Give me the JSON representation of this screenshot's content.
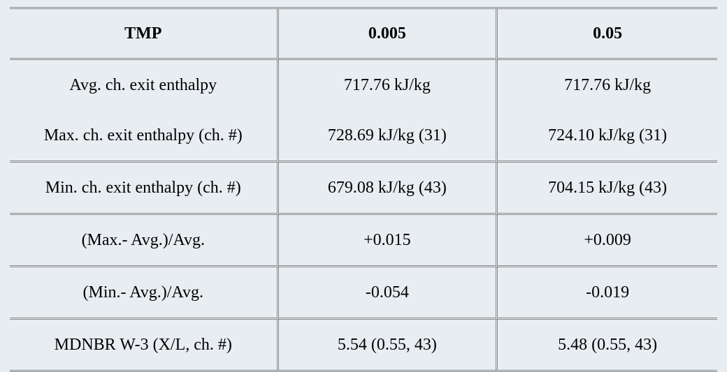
{
  "table": {
    "type": "table",
    "background_color": "#e8edf2",
    "border_color": "#888888",
    "font_family": "Garamond, Times New Roman, serif",
    "font_size_pt": 18,
    "header_font_weight": "bold",
    "columns": [
      {
        "label": "TMP",
        "width_pct": 38,
        "align": "center"
      },
      {
        "label": "0.005",
        "width_pct": 31,
        "align": "center"
      },
      {
        "label": "0.05",
        "width_pct": 31,
        "align": "center"
      }
    ],
    "rows": [
      {
        "label": "Avg. ch. exit enthalpy",
        "col1": "717.76 kJ/kg",
        "col2": "717.76 kJ/kg",
        "hr_below": false
      },
      {
        "label": "Max. ch. exit enthalpy (ch. #)",
        "col1": "728.69 kJ/kg (31)",
        "col2": "724.10 kJ/kg (31)",
        "hr_below": true
      },
      {
        "label": "Min. ch. exit enthalpy (ch. #)",
        "col1": "679.08 kJ/kg (43)",
        "col2": "704.15 kJ/kg (43)",
        "hr_below": true
      },
      {
        "label": "(Max.- Avg.)/Avg.",
        "col1": "+0.015",
        "col2": "+0.009",
        "hr_below": true
      },
      {
        "label": "(Min.- Avg.)/Avg.",
        "col1": "-0.054",
        "col2": "-0.019",
        "hr_below": true
      },
      {
        "label": "MDNBR W-3 (X/L, ch. #)",
        "col1": "5.54 (0.55, 43)",
        "col2": "5.48 (0.55, 43)",
        "hr_below": false
      }
    ]
  }
}
